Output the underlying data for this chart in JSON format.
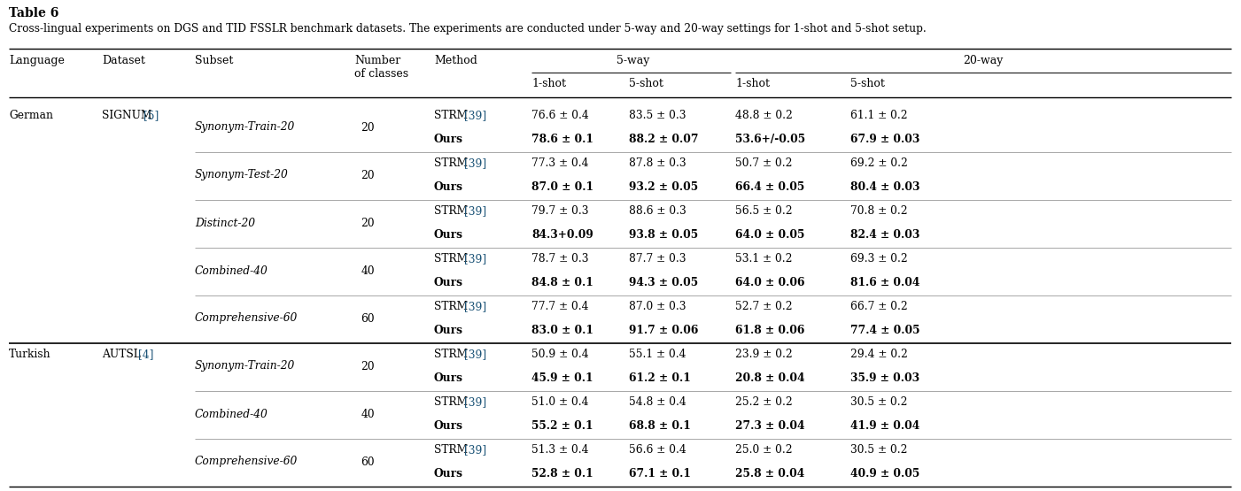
{
  "table_title": "Table 6",
  "table_caption": "Cross-lingual experiments on DGS and TID FSSLR benchmark datasets. The experiments are conducted under 5-way and 20-way settings for 1-shot and 5-shot setup.",
  "rows": [
    [
      "German",
      "SIGNUM [5]",
      "Synonym-Train-20",
      "20",
      "STRM [39]",
      "76.6 ± 0.4",
      "83.5 ± 0.3",
      "48.8 ± 0.2",
      "61.1 ± 0.2"
    ],
    [
      "",
      "",
      "",
      "",
      "Ours",
      "78.6 ± 0.1",
      "88.2 ± 0.07",
      "53.6+/-0.05",
      "67.9 ± 0.03"
    ],
    [
      "",
      "",
      "Synonym-Test-20",
      "20",
      "STRM [39]",
      "77.3 ± 0.4",
      "87.8 ± 0.3",
      "50.7 ± 0.2",
      "69.2 ± 0.2"
    ],
    [
      "",
      "",
      "",
      "",
      "Ours",
      "87.0 ± 0.1",
      "93.2 ± 0.05",
      "66.4 ± 0.05",
      "80.4 ± 0.03"
    ],
    [
      "",
      "",
      "Distinct-20",
      "20",
      "STRM [39]",
      "79.7 ± 0.3",
      "88.6 ± 0.3",
      "56.5 ± 0.2",
      "70.8 ± 0.2"
    ],
    [
      "",
      "",
      "",
      "",
      "Ours",
      "84.3+0.09",
      "93.8 ± 0.05",
      "64.0 ± 0.05",
      "82.4 ± 0.03"
    ],
    [
      "",
      "",
      "Combined-40",
      "40",
      "STRM [39]",
      "78.7 ± 0.3",
      "87.7 ± 0.3",
      "53.1 ± 0.2",
      "69.3 ± 0.2"
    ],
    [
      "",
      "",
      "",
      "",
      "Ours",
      "84.8 ± 0.1",
      "94.3 ± 0.05",
      "64.0 ± 0.06",
      "81.6 ± 0.04"
    ],
    [
      "",
      "",
      "Comprehensive-60",
      "60",
      "STRM [39]",
      "77.7 ± 0.4",
      "87.0 ± 0.3",
      "52.7 ± 0.2",
      "66.7 ± 0.2"
    ],
    [
      "",
      "",
      "",
      "",
      "Ours",
      "83.0 ± 0.1",
      "91.7 ± 0.06",
      "61.8 ± 0.06",
      "77.4 ± 0.05"
    ],
    [
      "Turkish",
      "AUTSL [4]",
      "Synonym-Train-20",
      "20",
      "STRM [39]",
      "50.9 ± 0.4",
      "55.1 ± 0.4",
      "23.9 ± 0.2",
      "29.4 ± 0.2"
    ],
    [
      "",
      "",
      "",
      "",
      "Ours",
      "45.9 ± 0.1",
      "61.2 ± 0.1",
      "20.8 ± 0.04",
      "35.9 ± 0.03"
    ],
    [
      "",
      "",
      "Combined-40",
      "40",
      "STRM [39]",
      "51.0 ± 0.4",
      "54.8 ± 0.4",
      "25.2 ± 0.2",
      "30.5 ± 0.2"
    ],
    [
      "",
      "",
      "",
      "",
      "Ours",
      "55.2 ± 0.1",
      "68.8 ± 0.1",
      "27.3 ± 0.04",
      "41.9 ± 0.04"
    ],
    [
      "",
      "",
      "Comprehensive-60",
      "60",
      "STRM [39]",
      "51.3 ± 0.4",
      "56.6 ± 0.4",
      "25.0 ± 0.2",
      "30.5 ± 0.2"
    ],
    [
      "",
      "",
      "",
      "",
      "Ours",
      "52.8 ± 0.1",
      "67.1 ± 0.1",
      "25.8 ± 0.04",
      "40.9 ± 0.05"
    ]
  ],
  "ours_bold": [
    1,
    3,
    5,
    7,
    9,
    13,
    15
  ],
  "subset_sep_after": [
    1,
    3,
    5,
    7,
    11,
    13
  ],
  "section_sep_after": 9,
  "figsize": [
    14.01,
    5.55
  ],
  "dpi": 100,
  "cite_color": "#1a5276",
  "strm_cite_color": "#1a5276",
  "title_fontsize": 10,
  "caption_fontsize": 8.8,
  "header_fontsize": 9,
  "cell_fontsize": 8.8
}
